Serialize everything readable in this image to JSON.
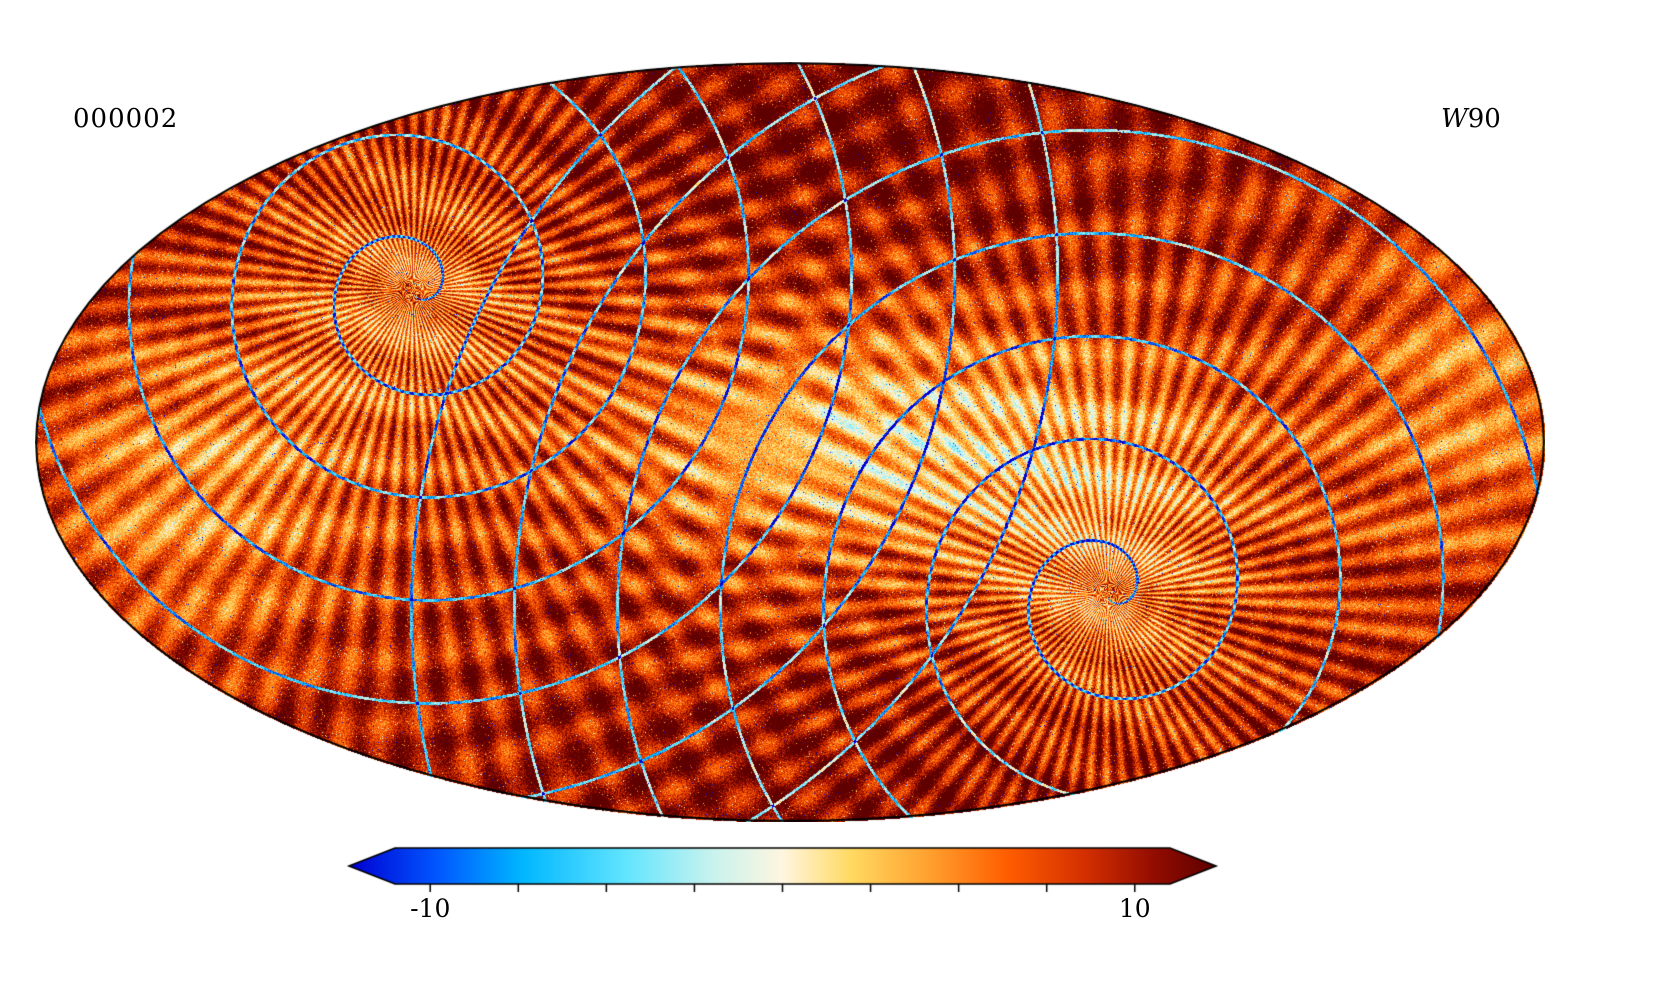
{
  "chart_data": {
    "type": "heatmap",
    "projection": "mollweide",
    "title": "000002",
    "band_letter": "W",
    "band_number": "90",
    "colorbar": {
      "orientation": "horizontal",
      "extend": "both",
      "min": -11,
      "max": 11,
      "tick_values": [
        -10,
        -7.5,
        -5,
        -2.5,
        0,
        2.5,
        5,
        7.5,
        10
      ],
      "min_label": "-10",
      "max_label": "10",
      "colormap_stops": [
        [
          0.0,
          "#0000d0"
        ],
        [
          0.1,
          "#0055ff"
        ],
        [
          0.2,
          "#00b7ff"
        ],
        [
          0.32,
          "#63e5ff"
        ],
        [
          0.42,
          "#c9f3ee"
        ],
        [
          0.5,
          "#fff6e0"
        ],
        [
          0.58,
          "#ffd961"
        ],
        [
          0.67,
          "#ffa02e"
        ],
        [
          0.76,
          "#ff5d00"
        ],
        [
          0.85,
          "#d32f00"
        ],
        [
          0.93,
          "#920c00"
        ],
        [
          1.0,
          "#5e0000"
        ]
      ]
    },
    "texture": {
      "seed": 7,
      "base_level": 8.3,
      "streak_amplitude": 2.3,
      "grain_amplitude": 3.0,
      "spoke_count": 70,
      "foci": [
        {
          "x": -0.5,
          "y": -0.4
        },
        {
          "x": 0.42,
          "y": 0.4
        }
      ],
      "pale_blobs": [
        {
          "x": 0.15,
          "y": 0.0,
          "sx": 0.42,
          "sy": 0.3,
          "depth": 6.2
        },
        {
          "x": -0.78,
          "y": 0.1,
          "sx": 0.22,
          "sy": 0.4,
          "depth": 4.2
        },
        {
          "x": 0.93,
          "y": -0.15,
          "sx": 0.18,
          "sy": 0.45,
          "depth": 3.6
        }
      ],
      "dark_blobs": [
        {
          "x": 0.05,
          "y": -0.8,
          "sx": 0.4,
          "sy": 0.25,
          "depth": 1.8
        },
        {
          "x": 0.05,
          "y": 0.85,
          "sx": 0.45,
          "sy": 0.25,
          "depth": 1.2
        }
      ],
      "focus_brighten": 3.4,
      "blue_speck_prob": 0.004,
      "white_speck_prob": 0.018
    }
  }
}
